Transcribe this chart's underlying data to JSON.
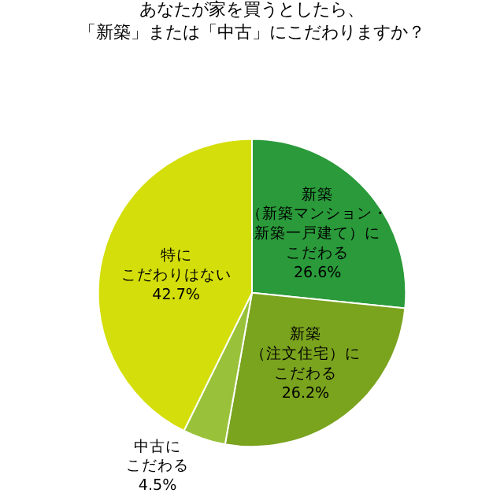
{
  "chart_data": {
    "type": "pie",
    "title": "あなたが家を買うとしたら、「新築」または「中古」にこだわりますか？",
    "categories": [
      "新築（新築マンション・新築一戸建て）にこだわる",
      "新築（注文住宅）にこだわる",
      "中古にこだわる",
      "特にこだわりはない"
    ],
    "values": [
      26.6,
      26.2,
      4.5,
      42.7
    ],
    "value_labels": [
      "26.6%",
      "26.2%",
      "4.5%",
      "42.7%"
    ],
    "colors": [
      "#2a9a3a",
      "#7aa31e",
      "#99c23a",
      "#d4de0a"
    ],
    "legend": false
  }
}
